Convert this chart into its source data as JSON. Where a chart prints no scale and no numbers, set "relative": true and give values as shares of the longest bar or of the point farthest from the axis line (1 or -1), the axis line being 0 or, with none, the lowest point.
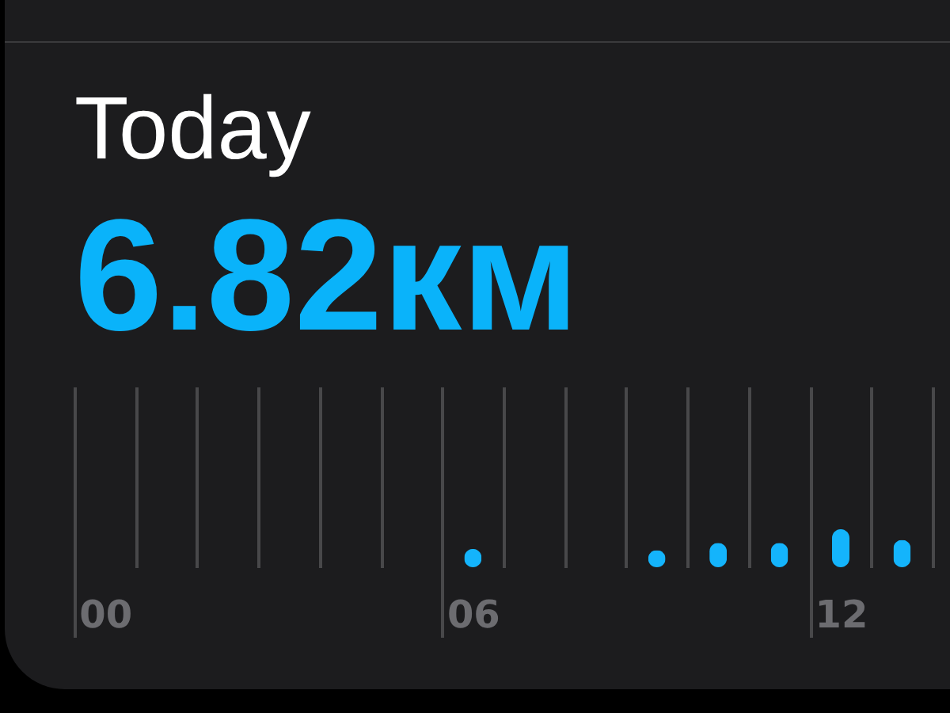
{
  "chart_data": {
    "type": "bar",
    "title": "Today",
    "subtitle": "6.82км",
    "categories": [
      "00",
      null,
      null,
      null,
      null,
      null,
      "06",
      null,
      null,
      null,
      null,
      null,
      "12",
      null
    ],
    "values": [
      null,
      null,
      null,
      null,
      null,
      null,
      0.48,
      null,
      null,
      0.45,
      0.64,
      0.64,
      1,
      0.72
    ],
    "color": "#14b4fc",
    "relative": true,
    "grid": "x"
  }
}
